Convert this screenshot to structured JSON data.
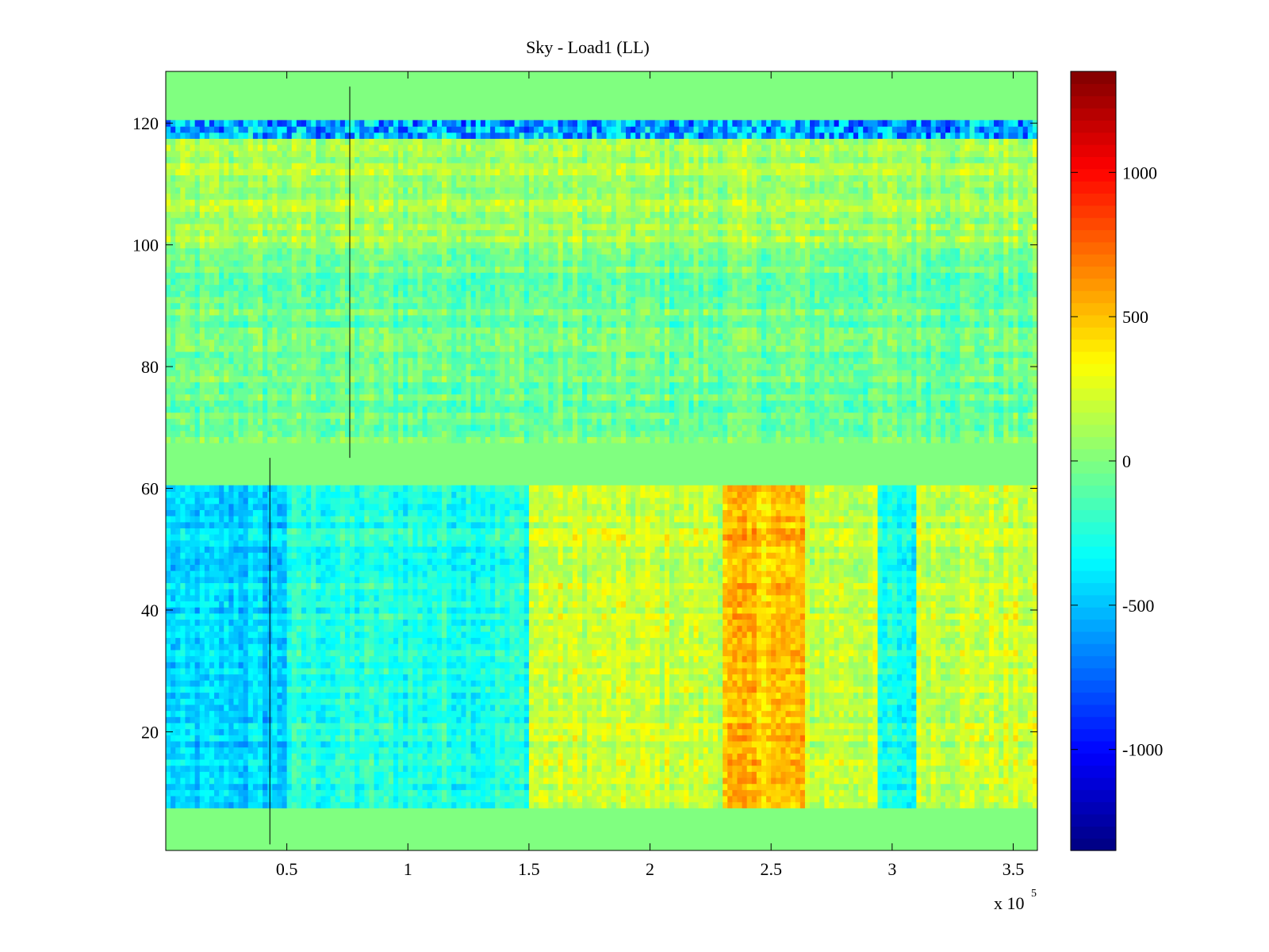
{
  "chart_data": {
    "type": "heatmap",
    "title": "Sky - Load1 (LL)",
    "xlabel": "",
    "ylabel": "",
    "x_multiplier_label": "x 10",
    "x_multiplier_exponent": "5",
    "xlim": [
      0,
      3.6
    ],
    "ylim": [
      0.5,
      128.5
    ],
    "x_ticks": [
      0.5,
      1,
      1.5,
      2,
      2.5,
      3,
      3.5
    ],
    "x_tick_labels": [
      "0.5",
      "1",
      "1.5",
      "2",
      "2.5",
      "3",
      "3.5"
    ],
    "y_ticks": [
      20,
      40,
      60,
      80,
      100,
      120
    ],
    "y_tick_labels": [
      "20",
      "40",
      "60",
      "80",
      "100",
      "120"
    ],
    "colorbar": {
      "colormap": "jet",
      "clim": [
        -1350,
        1350
      ],
      "ticks": [
        -1000,
        -500,
        0,
        500,
        1000
      ],
      "tick_labels": [
        "-1000",
        "-500",
        "0",
        "500",
        "1000"
      ]
    },
    "blank_rows": [
      [
        1,
        7.5
      ],
      [
        61.5,
        67.5
      ],
      [
        121.5,
        128
      ]
    ],
    "value_regions": [
      {
        "x": [
          0,
          0.5
        ],
        "y": [
          8,
          61
        ],
        "approx_value": -450
      },
      {
        "x": [
          0.5,
          1.5
        ],
        "y": [
          8,
          61
        ],
        "approx_value": -250
      },
      {
        "x": [
          1.5,
          2.3
        ],
        "y": [
          8,
          61
        ],
        "approx_value": 200
      },
      {
        "x": [
          2.3,
          2.65
        ],
        "y": [
          8,
          61
        ],
        "approx_value": 500
      },
      {
        "x": [
          2.65,
          2.95
        ],
        "y": [
          8,
          61
        ],
        "approx_value": 200
      },
      {
        "x": [
          2.95,
          3.1
        ],
        "y": [
          8,
          61
        ],
        "approx_value": -300
      },
      {
        "x": [
          3.1,
          3.6
        ],
        "y": [
          8,
          61
        ],
        "approx_value": 200
      },
      {
        "x": [
          0,
          3.6
        ],
        "y": [
          68,
          100
        ],
        "approx_value": -50
      },
      {
        "x": [
          0,
          3.6
        ],
        "y": [
          100,
          121
        ],
        "approx_value": 100
      },
      {
        "x": [
          0,
          3.6
        ],
        "y": [
          118,
          121
        ],
        "approx_value": -600
      }
    ],
    "vertical_lines": [
      {
        "x": 0.43,
        "y": [
          1.5,
          65
        ]
      },
      {
        "x": 0.76,
        "y": [
          65,
          126
        ]
      }
    ]
  }
}
